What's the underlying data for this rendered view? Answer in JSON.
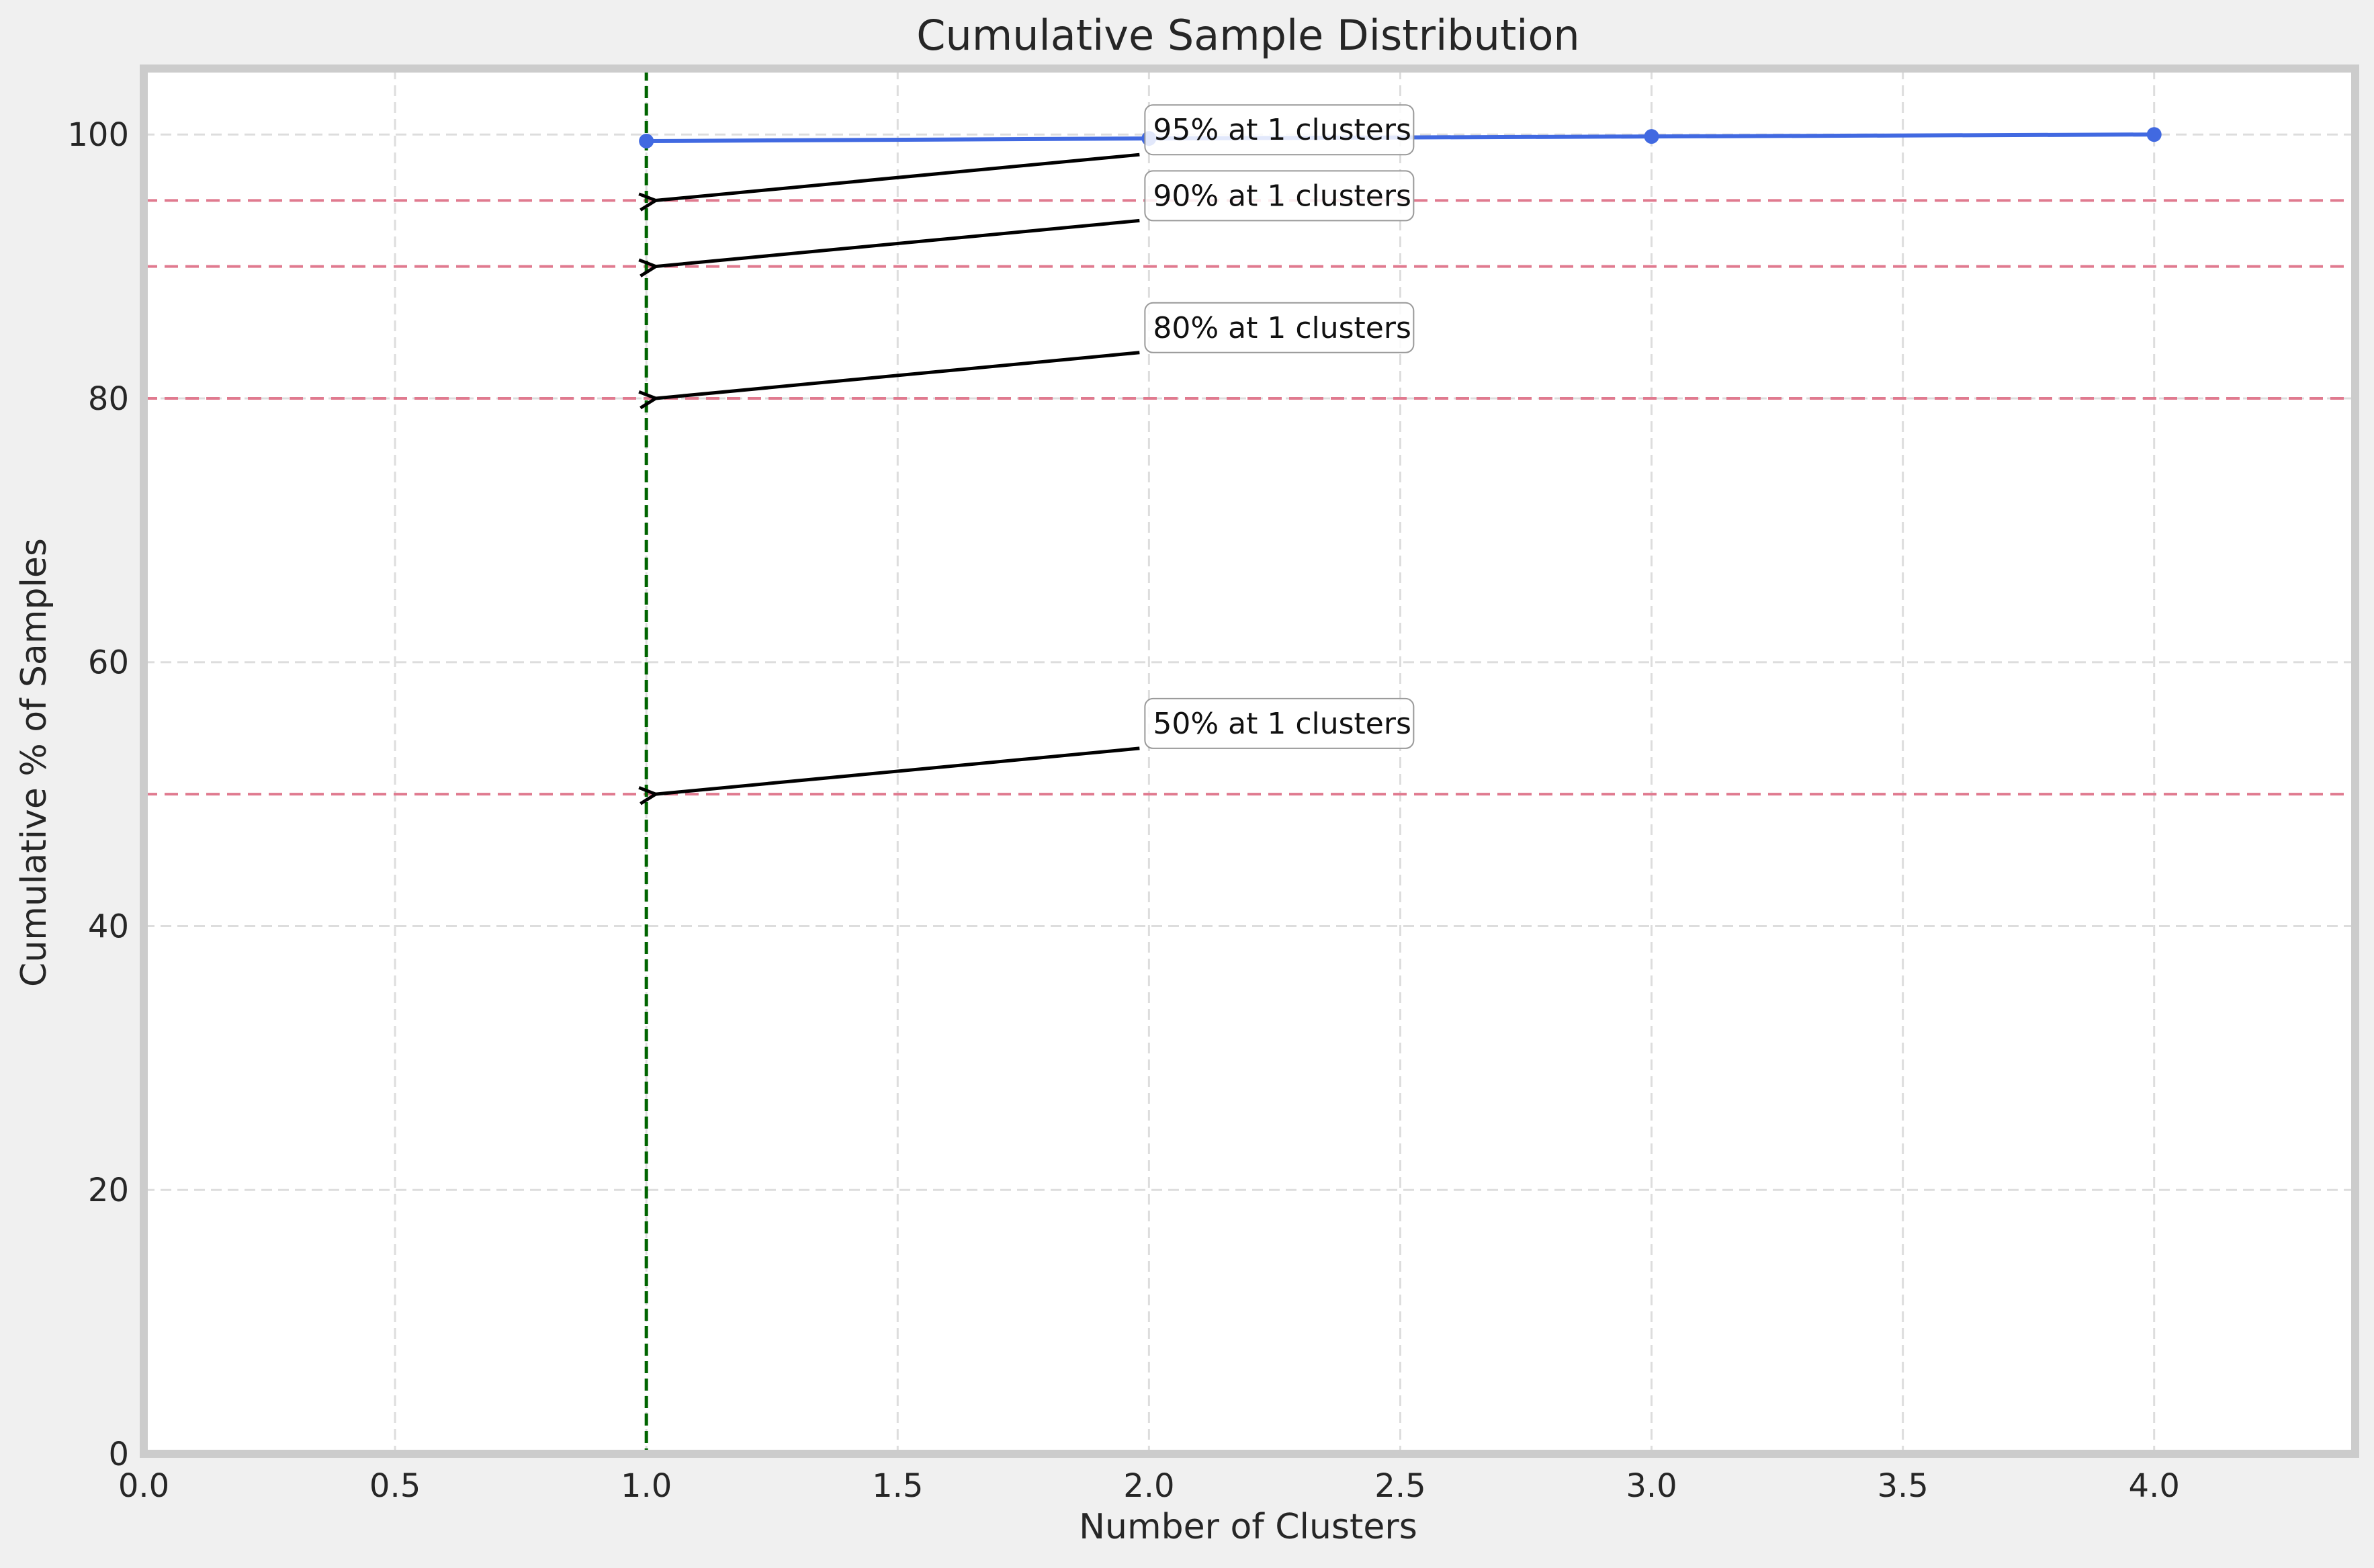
{
  "chart_data": {
    "type": "line",
    "title": "Cumulative Sample Distribution",
    "xlabel": "Number of Clusters",
    "ylabel": "Cumulative % of Samples",
    "xlim": [
      0,
      4.4
    ],
    "ylim": [
      0,
      105
    ],
    "x_ticks": [
      0.0,
      0.5,
      1.0,
      1.5,
      2.0,
      2.5,
      3.0,
      3.5,
      4.0
    ],
    "x_tick_labels": [
      "0.0",
      "0.5",
      "1.0",
      "1.5",
      "2.0",
      "2.5",
      "3.0",
      "3.5",
      "4.0"
    ],
    "y_ticks": [
      0,
      20,
      40,
      60,
      80,
      100
    ],
    "y_tick_labels": [
      "0",
      "20",
      "40",
      "60",
      "80",
      "100"
    ],
    "grid": true,
    "series": [
      {
        "x": [
          1,
          2,
          3,
          4
        ],
        "y": [
          99.5,
          99.7,
          99.85,
          100.0
        ],
        "color": "#4169e1"
      }
    ],
    "threshold_lines": [
      {
        "y": 50,
        "color": "#e07a8f"
      },
      {
        "y": 80,
        "color": "#e07a8f"
      },
      {
        "y": 90,
        "color": "#e07a8f"
      },
      {
        "y": 95,
        "color": "#e07a8f"
      }
    ],
    "vertical_line": {
      "x": 1,
      "color": "#006400"
    },
    "annotations": [
      {
        "text": "50% at 1 clusters",
        "point": [
          1,
          50
        ],
        "text_at": [
          2,
          55
        ]
      },
      {
        "text": "80% at 1 clusters",
        "point": [
          1,
          80
        ],
        "text_at": [
          2,
          85
        ]
      },
      {
        "text": "90% at 1 clusters",
        "point": [
          1,
          90
        ],
        "text_at": [
          2,
          95
        ]
      },
      {
        "text": "95% at 1 clusters",
        "point": [
          1,
          95
        ],
        "text_at": [
          2,
          100
        ]
      }
    ],
    "colors": {
      "background": "#f0f0f0",
      "plot_background": "#ffffff",
      "frame": "#cccccc",
      "grid": "#dddddd"
    }
  }
}
